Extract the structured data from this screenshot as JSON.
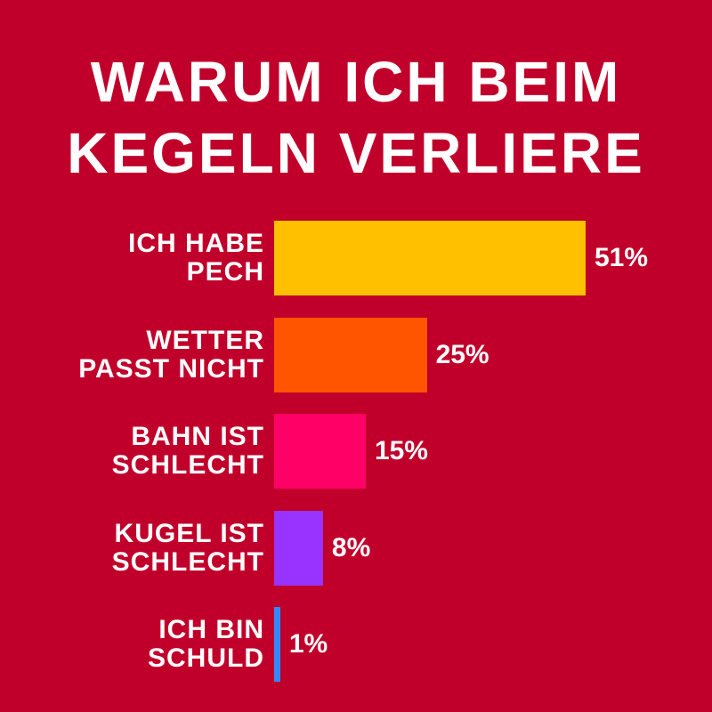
{
  "chart_data": {
    "type": "bar",
    "orientation": "horizontal",
    "title": "WARUM ICH BEIM\nKEGELN VERLIERE",
    "categories": [
      "ICH HABE\nPECH",
      "WETTER\nPASST NICHT",
      "BAHN IST\nSCHLECHT",
      "KUGEL IST\nSCHLECHT",
      "ICH BIN\nSCHULD"
    ],
    "values": [
      51,
      25,
      15,
      8,
      1
    ],
    "value_labels": [
      "51%",
      "25%",
      "15%",
      "8%",
      "1%"
    ],
    "colors": [
      "#ffc000",
      "#ff5500",
      "#ff0066",
      "#9933ff",
      "#3388ff"
    ],
    "background": "#c0002a"
  }
}
